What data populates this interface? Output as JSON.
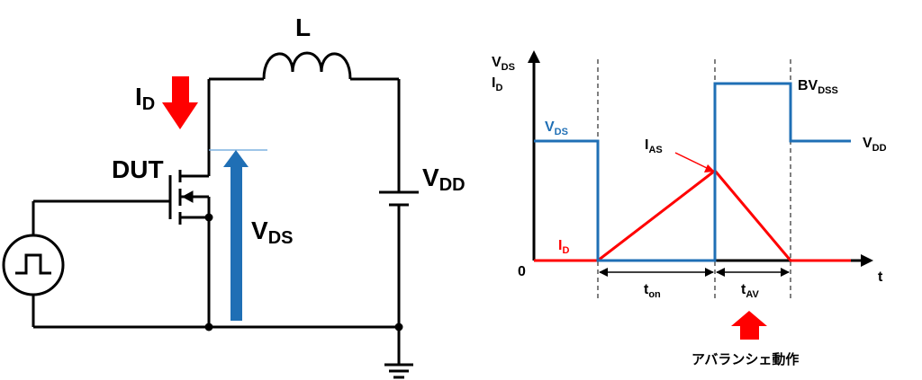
{
  "circuit": {
    "inductor_label": "L",
    "id_label": {
      "main": "I",
      "sub": "D"
    },
    "dut_label": "DUT",
    "vds_label": {
      "main": "V",
      "sub": "DS"
    },
    "vdd_label": {
      "main": "V",
      "sub": "DD"
    }
  },
  "waveform": {
    "y_axis_labels": [
      {
        "main": "V",
        "sub": "DS"
      },
      {
        "main": "I",
        "sub": "D"
      }
    ],
    "origin_label": "0",
    "x_axis_label": "t",
    "vds_trace_label": {
      "main": "V",
      "sub": "DS"
    },
    "id_trace_label": {
      "main": "I",
      "sub": "D"
    },
    "ias_label": {
      "main": "I",
      "sub": "AS"
    },
    "bvdss_label": {
      "main": "BV",
      "sub": "DSS"
    },
    "vdd_level_label": {
      "main": "V",
      "sub": "DD"
    },
    "ton_label": {
      "main": "t",
      "sub": "on"
    },
    "tav_label": {
      "main": "t",
      "sub": "AV"
    },
    "avalanche_caption": "アバランシェ動作",
    "colors": {
      "vds": "#1f6fb5",
      "id": "#ff0000",
      "axis": "#000000"
    }
  }
}
